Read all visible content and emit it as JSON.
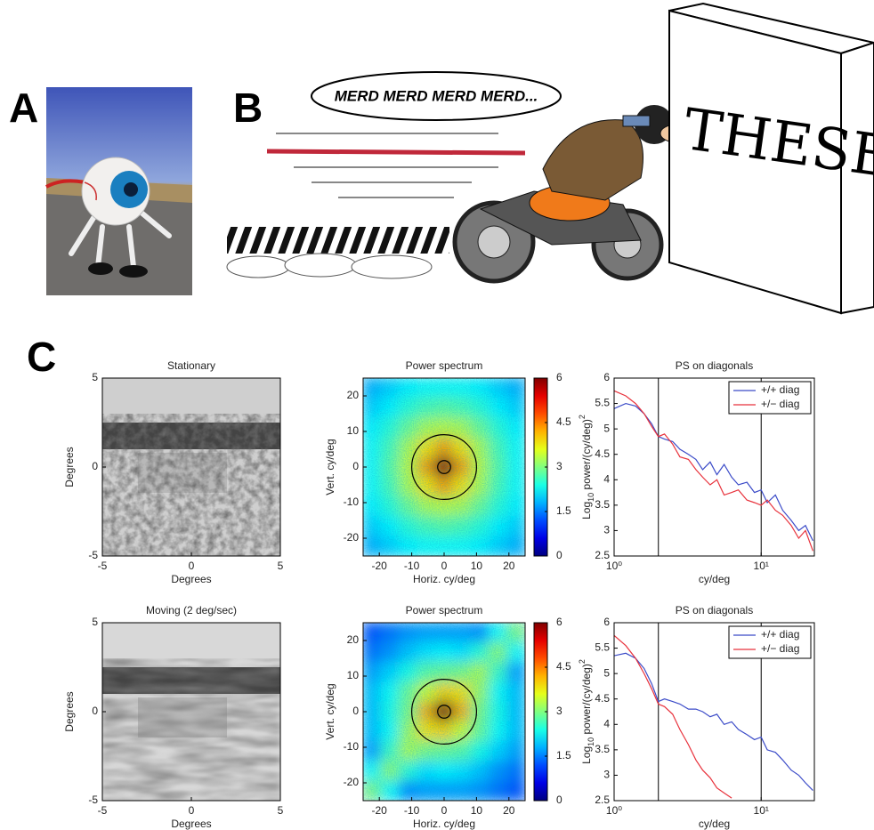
{
  "panel_labels": [
    "A",
    "B",
    "C"
  ],
  "cartoon": {
    "speech": "MERD MERD MERD MERD...",
    "wall": "THESE"
  },
  "chart_data": [
    {
      "type": "image",
      "title": "Stationary",
      "xlabel": "Degrees",
      "ylabel": "Degrees",
      "xlim": [
        -5,
        5
      ],
      "ylim": [
        -5,
        5
      ],
      "xticks": [
        -5,
        0,
        5
      ],
      "yticks": [
        -5,
        0,
        5
      ]
    },
    {
      "type": "heatmap",
      "title": "Power spectrum",
      "xlabel": "Horiz. cy/deg",
      "ylabel": "Vert. cy/deg",
      "xlim": [
        -25,
        25
      ],
      "ylim": [
        -25,
        25
      ],
      "xticks": [
        -20,
        -10,
        0,
        10,
        20
      ],
      "yticks": [
        -20,
        -10,
        0,
        10,
        20
      ],
      "colormap": "jet",
      "clim": [
        0,
        6
      ],
      "cticks": [
        0,
        1.5,
        3,
        4.5,
        6
      ],
      "circles": [
        10,
        2
      ],
      "z": [
        [
          1.8,
          2.0,
          2.2,
          2.3,
          2.3,
          2.3,
          2.2,
          2.0,
          1.8
        ],
        [
          2.0,
          2.2,
          2.5,
          2.7,
          2.8,
          2.7,
          2.5,
          2.2,
          2.0
        ],
        [
          2.2,
          2.5,
          2.9,
          3.3,
          3.4,
          3.3,
          2.9,
          2.5,
          2.2
        ],
        [
          2.3,
          2.7,
          3.3,
          3.9,
          4.3,
          3.9,
          3.3,
          2.7,
          2.3
        ],
        [
          2.3,
          2.8,
          3.4,
          4.3,
          6,
          4.3,
          3.4,
          2.8,
          2.3
        ],
        [
          2.3,
          2.7,
          3.3,
          3.9,
          4.3,
          3.9,
          3.3,
          2.7,
          2.3
        ],
        [
          2.2,
          2.5,
          2.9,
          3.3,
          3.4,
          3.3,
          2.9,
          2.5,
          2.2
        ],
        [
          2.0,
          2.2,
          2.5,
          2.7,
          2.8,
          2.7,
          2.5,
          2.2,
          2.0
        ],
        [
          1.8,
          2.0,
          2.2,
          2.3,
          2.3,
          2.3,
          2.2,
          2.0,
          1.8
        ]
      ]
    },
    {
      "type": "line",
      "title": "PS on diagonals",
      "xlabel": "cy/deg",
      "ylabel": [
        "Log",
        "10",
        " power/(cy/deg)",
        "2"
      ],
      "xscale": "log",
      "xlim": [
        1,
        23
      ],
      "xticks": [
        {
          "value": 1,
          "label": "10⁰"
        },
        {
          "value": 10,
          "label": "10¹"
        }
      ],
      "ylim": [
        2.5,
        6
      ],
      "yticks": [
        2.5,
        3,
        3.5,
        4,
        4.5,
        5,
        5.5,
        6
      ],
      "vlines": [
        2,
        10
      ],
      "legend": "upper right",
      "x": [
        1,
        1.2,
        1.4,
        1.6,
        1.8,
        2,
        2.2,
        2.5,
        2.8,
        3.2,
        3.6,
        4,
        4.5,
        5,
        5.6,
        6.3,
        7,
        8,
        9,
        10,
        11,
        12.5,
        14,
        16,
        18,
        20,
        22.5
      ],
      "series": [
        {
          "name": "+/+ diag",
          "color": "#3b4bc8",
          "values": [
            5.4,
            5.5,
            5.45,
            5.3,
            5.1,
            4.85,
            4.8,
            4.75,
            4.6,
            4.5,
            4.4,
            4.2,
            4.35,
            4.1,
            4.3,
            4.05,
            3.9,
            3.95,
            3.75,
            3.8,
            3.55,
            3.7,
            3.4,
            3.2,
            3.0,
            3.1,
            2.8
          ]
        },
        {
          "name": "+/− diag",
          "color": "#e8323c",
          "values": [
            5.75,
            5.65,
            5.5,
            5.3,
            5.05,
            4.85,
            4.9,
            4.7,
            4.45,
            4.4,
            4.2,
            4.05,
            3.9,
            4.0,
            3.7,
            3.75,
            3.8,
            3.6,
            3.55,
            3.5,
            3.6,
            3.4,
            3.3,
            3.1,
            2.85,
            3.0,
            2.6
          ]
        }
      ]
    },
    {
      "type": "image",
      "title": "Moving (2 deg/sec)",
      "xlabel": "Degrees",
      "ylabel": "Degrees",
      "xlim": [
        -5,
        5
      ],
      "ylim": [
        -5,
        5
      ],
      "xticks": [
        -5,
        0,
        5
      ],
      "yticks": [
        -5,
        0,
        5
      ]
    },
    {
      "type": "heatmap",
      "title": "Power spectrum",
      "xlabel": "Horiz. cy/deg",
      "ylabel": "Vert. cy/deg",
      "xlim": [
        -25,
        25
      ],
      "ylim": [
        -25,
        25
      ],
      "xticks": [
        -20,
        -10,
        0,
        10,
        20
      ],
      "yticks": [
        -20,
        -10,
        0,
        10,
        20
      ],
      "colormap": "jet",
      "clim": [
        0,
        6
      ],
      "cticks": [
        0,
        1.5,
        3,
        4.5,
        6
      ],
      "circles": [
        10,
        2
      ],
      "z": [
        [
          1.2,
          1.4,
          1.6,
          1.7,
          1.7,
          1.7,
          1.6,
          2.3,
          3.0
        ],
        [
          1.4,
          1.6,
          1.9,
          2.1,
          2.2,
          2.1,
          2.5,
          3.1,
          2.3
        ],
        [
          1.7,
          2.0,
          2.4,
          2.8,
          2.9,
          3.0,
          3.3,
          2.6,
          1.7
        ],
        [
          1.9,
          2.3,
          2.9,
          3.5,
          4.0,
          3.9,
          3.2,
          2.3,
          1.9
        ],
        [
          1.9,
          2.4,
          3.0,
          4.2,
          6,
          4.2,
          3.0,
          2.4,
          1.9
        ],
        [
          1.9,
          2.3,
          3.2,
          3.9,
          4.0,
          3.5,
          2.9,
          2.3,
          1.9
        ],
        [
          1.7,
          2.6,
          3.3,
          3.0,
          2.9,
          2.8,
          2.4,
          2.0,
          1.7
        ],
        [
          2.3,
          3.1,
          2.5,
          2.1,
          2.2,
          2.1,
          1.9,
          1.6,
          1.4
        ],
        [
          3.0,
          2.3,
          1.6,
          1.7,
          1.7,
          1.7,
          1.6,
          1.4,
          1.2
        ]
      ]
    },
    {
      "type": "line",
      "title": "PS on diagonals",
      "xlabel": "cy/deg",
      "ylabel": [
        "Log",
        "10",
        " power/(cy/deg)",
        "2"
      ],
      "xscale": "log",
      "xlim": [
        1,
        23
      ],
      "xticks": [
        {
          "value": 1,
          "label": "10⁰"
        },
        {
          "value": 10,
          "label": "10¹"
        }
      ],
      "ylim": [
        2.5,
        6
      ],
      "yticks": [
        2.5,
        3,
        3.5,
        4,
        4.5,
        5,
        5.5,
        6
      ],
      "vlines": [
        2,
        10
      ],
      "legend": "upper right",
      "x": [
        1,
        1.2,
        1.4,
        1.6,
        1.8,
        2,
        2.2,
        2.5,
        2.8,
        3.2,
        3.6,
        4,
        4.5,
        5,
        5.6,
        6.3,
        7,
        8,
        9,
        10,
        11,
        12.5,
        14,
        16,
        18,
        20,
        22.5
      ],
      "series": [
        {
          "name": "+/+ diag",
          "color": "#3b4bc8",
          "values": [
            5.35,
            5.4,
            5.3,
            5.1,
            4.8,
            4.45,
            4.5,
            4.45,
            4.4,
            4.3,
            4.3,
            4.25,
            4.15,
            4.2,
            4.0,
            4.05,
            3.9,
            3.8,
            3.7,
            3.75,
            3.5,
            3.45,
            3.3,
            3.1,
            3.0,
            2.85,
            2.7
          ]
        },
        {
          "name": "+/− diag",
          "color": "#e8323c",
          "values": [
            5.75,
            5.55,
            5.3,
            5.0,
            4.7,
            4.4,
            4.35,
            4.2,
            3.9,
            3.6,
            3.3,
            3.1,
            2.95,
            2.75,
            2.65,
            2.55,
            null,
            null,
            null,
            null,
            null,
            null,
            null,
            null,
            null,
            null,
            null
          ]
        }
      ]
    }
  ]
}
